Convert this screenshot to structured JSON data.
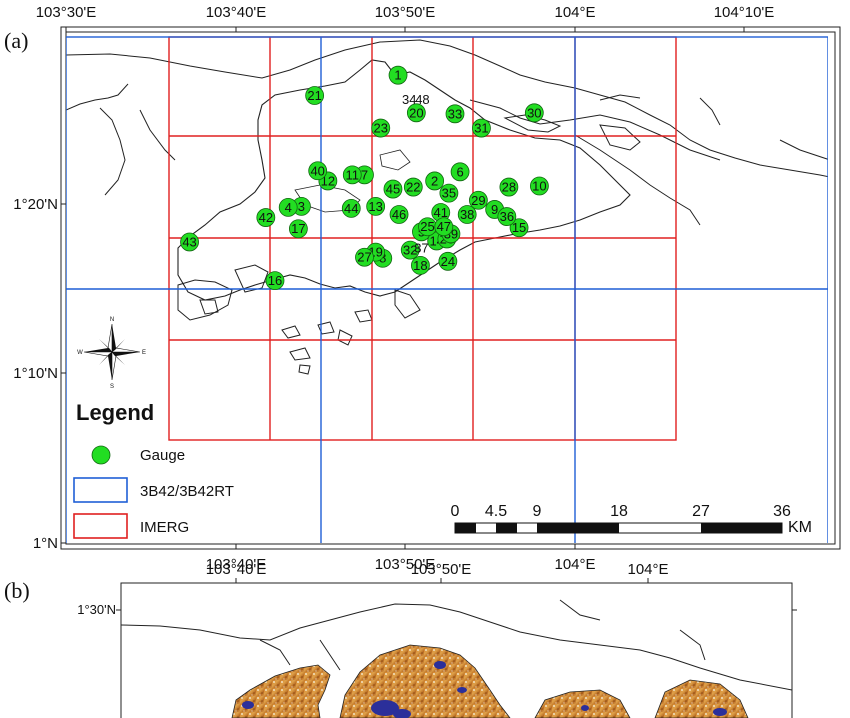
{
  "panel_a": {
    "label": "(a)",
    "top_lon_ticks": [
      "103°30'E",
      "103°40'E",
      "103°50'E",
      "104°E",
      "104°10'E"
    ],
    "bottom_lon_ticks": [
      "103°40'E",
      "103°50'E",
      "104°E"
    ],
    "lat_ticks": [
      "1°20'N",
      "1°10'N",
      "1°N"
    ],
    "legend": {
      "title": "Legend",
      "items": [
        {
          "label": "Gauge",
          "symbol": "circle",
          "color": "#22dd22"
        },
        {
          "label": "3B42/3B42RT",
          "symbol": "box",
          "color": "#1f5fd6"
        },
        {
          "label": "IMERG",
          "symbol": "box",
          "color": "#e02020"
        }
      ]
    },
    "scale_bar": {
      "labels": [
        "0",
        "4.5",
        "9",
        "18",
        "27",
        "36"
      ],
      "unit": "KM"
    },
    "compass": {
      "labels": [
        "N",
        "S",
        "E",
        "W"
      ]
    },
    "gauges": [
      {
        "id": "1",
        "lon": 103.826,
        "lat": 1.46
      },
      {
        "id": "2",
        "lon": 103.862,
        "lat": 1.356
      },
      {
        "id": "3",
        "lon": 103.731,
        "lat": 1.331
      },
      {
        "id": "4",
        "lon": 103.718,
        "lat": 1.33
      },
      {
        "id": "5",
        "lon": 103.849,
        "lat": 1.306
      },
      {
        "id": "6",
        "lon": 103.887,
        "lat": 1.365
      },
      {
        "id": "7",
        "lon": 103.793,
        "lat": 1.362
      },
      {
        "id": "8",
        "lon": 103.811,
        "lat": 1.28
      },
      {
        "id": "9",
        "lon": 103.921,
        "lat": 1.328
      },
      {
        "id": "10",
        "lon": 103.965,
        "lat": 1.351
      },
      {
        "id": "11",
        "lon": 103.781,
        "lat": 1.362
      },
      {
        "id": "12",
        "lon": 103.757,
        "lat": 1.356
      },
      {
        "id": "13",
        "lon": 103.804,
        "lat": 1.331
      },
      {
        "id": "14",
        "lon": 103.864,
        "lat": 1.297
      },
      {
        "id": "15",
        "lon": 103.945,
        "lat": 1.31
      },
      {
        "id": "16",
        "lon": 103.705,
        "lat": 1.258
      },
      {
        "id": "17",
        "lon": 103.728,
        "lat": 1.309
      },
      {
        "id": "18",
        "lon": 103.848,
        "lat": 1.273
      },
      {
        "id": "19",
        "lon": 103.804,
        "lat": 1.286
      },
      {
        "id": "20",
        "lon": 103.844,
        "lat": 1.423
      },
      {
        "id": "21",
        "lon": 103.744,
        "lat": 1.44
      },
      {
        "id": "22",
        "lon": 103.841,
        "lat": 1.35
      },
      {
        "id": "23",
        "lon": 103.809,
        "lat": 1.408
      },
      {
        "id": "24",
        "lon": 103.875,
        "lat": 1.277
      },
      {
        "id": "25",
        "lon": 103.855,
        "lat": 1.311
      },
      {
        "id": "26",
        "lon": 103.874,
        "lat": 1.299
      },
      {
        "id": "27",
        "lon": 103.793,
        "lat": 1.281
      },
      {
        "id": "28",
        "lon": 103.935,
        "lat": 1.35
      },
      {
        "id": "29",
        "lon": 103.905,
        "lat": 1.337
      },
      {
        "id": "30",
        "lon": 103.96,
        "lat": 1.423
      },
      {
        "id": "31",
        "lon": 103.908,
        "lat": 1.408
      },
      {
        "id": "32",
        "lon": 103.838,
        "lat": 1.288
      },
      {
        "id": "33",
        "lon": 103.882,
        "lat": 1.422
      },
      {
        "id": "34",
        "lon": 103.837,
        "lat": 1.436
      },
      {
        "id": "35",
        "lon": 103.876,
        "lat": 1.344
      },
      {
        "id": "36",
        "lon": 103.933,
        "lat": 1.321
      },
      {
        "id": "37",
        "lon": 103.849,
        "lat": 1.29
      },
      {
        "id": "38",
        "lon": 103.894,
        "lat": 1.323
      },
      {
        "id": "39",
        "lon": 103.878,
        "lat": 1.304
      },
      {
        "id": "40",
        "lon": 103.747,
        "lat": 1.366
      },
      {
        "id": "41",
        "lon": 103.868,
        "lat": 1.325
      },
      {
        "id": "42",
        "lon": 103.696,
        "lat": 1.32
      },
      {
        "id": "43",
        "lon": 103.621,
        "lat": 1.296
      },
      {
        "id": "44",
        "lon": 103.78,
        "lat": 1.329
      },
      {
        "id": "45",
        "lon": 103.821,
        "lat": 1.348
      },
      {
        "id": "46",
        "lon": 103.827,
        "lat": 1.323
      },
      {
        "id": "47",
        "lon": 103.871,
        "lat": 1.311
      },
      {
        "id": "48",
        "lon": 103.85,
        "lat": 1.436
      }
    ],
    "no_marker_ids": [
      "34",
      "37",
      "48"
    ]
  },
  "panel_b": {
    "label": "(b)",
    "top_lon_ticks": [
      "103°40'E",
      "103°50'E",
      "104°E"
    ],
    "lat_ticks": [
      "1°30'N"
    ]
  }
}
